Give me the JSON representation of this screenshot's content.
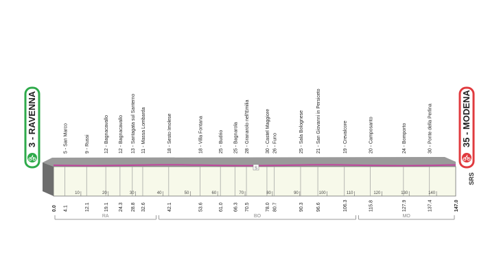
{
  "start": {
    "number": "3",
    "name": "RAVENNA",
    "color": "#2eaa4a"
  },
  "finish": {
    "number": "35",
    "name": "MODENA",
    "color": "#e03a3e"
  },
  "sprint_label": "SPRINT",
  "logo_text": "SRS",
  "profile_color": "#c2479e",
  "checkpoints": [
    {
      "km": 4.1,
      "label": "5 - San Marco"
    },
    {
      "km": 12.1,
      "label": "9 - Russi"
    },
    {
      "km": 19.1,
      "label": "12 - Bagnacavallo"
    },
    {
      "km": 24.3,
      "label": "12 - Bagnacavallo"
    },
    {
      "km": 28.8,
      "label": "13 - Santagata sul Santerno"
    },
    {
      "km": 32.6,
      "label": "11 - Massa Lombarda"
    },
    {
      "km": 42.1,
      "label": "18 - Sesto Imolese"
    },
    {
      "km": 53.6,
      "label": "18 - Villa Fontana"
    },
    {
      "km": 61.0,
      "label": "25 - Budrio"
    },
    {
      "km": 66.3,
      "label": "25 - Bagnarola"
    },
    {
      "km": 70.5,
      "label": "28 - Granarolo nell'Emilia"
    },
    {
      "km": 78.0,
      "label": "30 - Castel Maggiore"
    },
    {
      "km": 80.7,
      "label": "26 - Funo"
    },
    {
      "km": 90.3,
      "label": "25 - Sala Bolognese"
    },
    {
      "km": 96.6,
      "label": "21 - San Giovanni in Persiceto"
    },
    {
      "km": 106.3,
      "label": "19 - Crevalcore"
    },
    {
      "km": 115.8,
      "label": "20 - Camposanto"
    },
    {
      "km": 127.9,
      "label": "24 - Bomporto"
    },
    {
      "km": 137.4,
      "label": "30 - Ponte della Perlina"
    }
  ],
  "distance_labels": [
    "0.0",
    "4.1",
    "12.1",
    "19.1",
    "24.3",
    "28.8",
    "32.6",
    "42.1",
    "53.6",
    "61.0",
    "66.3",
    "70.5",
    "78.0",
    "80.7",
    "90.3",
    "96.6",
    "106.3",
    "115.8",
    "127.9",
    "137.4",
    "147.0"
  ],
  "axis_ticks": [
    "10",
    "20",
    "30",
    "40",
    "50",
    "60",
    "70",
    "80",
    "90",
    "100",
    "110",
    "120",
    "130",
    "140"
  ],
  "provinces": [
    {
      "code": "RA",
      "from_km": 0,
      "to_km": 38
    },
    {
      "code": "BO",
      "from_km": 38,
      "to_km": 111
    },
    {
      "code": "MO",
      "from_km": 111,
      "to_km": 147
    }
  ]
}
